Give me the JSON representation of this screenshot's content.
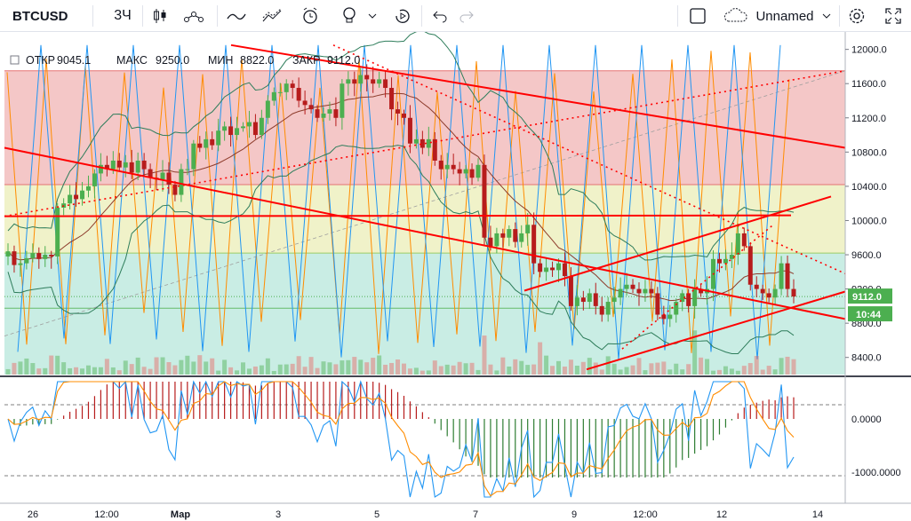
{
  "toolbar": {
    "symbol": "BTCUSD",
    "interval": "3Ч",
    "layout_name": "Unnamed",
    "icons": [
      "candles-icon",
      "indicators-icon",
      "line-tool-icon",
      "fib-tool-icon",
      "alert-icon",
      "idea-icon",
      "replay-icon",
      "undo-icon",
      "redo-icon",
      "square-icon",
      "cloud-icon",
      "settings-icon",
      "fullscreen-icon"
    ]
  },
  "legend": {
    "open_label": "ОТКР",
    "open": "9045.1",
    "high_label": "МАКС",
    "high": "9250.0",
    "low_label": "МИН",
    "low": "8822.0",
    "close_label": "ЗАКР",
    "close": "9112.0"
  },
  "chart_data": [
    {
      "type": "candlestick",
      "symbol": "BTCUSD",
      "ylim": [
        8200,
        12100
      ],
      "y_ticks": [
        "12000.0",
        "11600.0",
        "11200.0",
        "10800.0",
        "10400.0",
        "10000.0",
        "9600.0",
        "9200.0",
        "8800.0",
        "8400.0"
      ],
      "x_ticks": [
        "26",
        "12:00",
        "Мар",
        "3",
        "5",
        "7",
        "9",
        "12:00",
        "12",
        "14"
      ],
      "last_price_label": "9112.0",
      "countdown_label": "10:44",
      "closes": [
        9640,
        9480,
        9500,
        9560,
        9620,
        9550,
        9600,
        9580,
        10150,
        10200,
        10300,
        10250,
        10350,
        10400,
        10550,
        10650,
        10600,
        10700,
        10620,
        10680,
        10560,
        10700,
        10600,
        10500,
        10480,
        10560,
        10420,
        10300,
        10600,
        10600,
        10900,
        10850,
        10950,
        10880,
        11050,
        11100,
        11000,
        11080,
        11100,
        11150,
        11000,
        11200,
        11400,
        11500,
        11500,
        11600,
        11550,
        11400,
        11350,
        11300,
        11200,
        11250,
        11300,
        11200,
        11600,
        11650,
        11600,
        11700,
        11650,
        11600,
        11650,
        11550,
        11300,
        11250,
        11200,
        10900,
        10950,
        10850,
        10950,
        10700,
        10600,
        10650,
        10600,
        10550,
        10600,
        10500,
        10650,
        9800,
        9700,
        9850,
        9800,
        9900,
        9750,
        9850,
        9950,
        9500,
        9400,
        9450,
        9420,
        9500,
        9350,
        9000,
        9100,
        9050,
        9150,
        9000,
        8900,
        9050,
        9100,
        9200,
        9250,
        9200,
        9150,
        9200,
        9150,
        8900,
        8850,
        8900,
        9050,
        9150,
        9000,
        9200,
        9150,
        9200,
        9550,
        9500,
        9550,
        9600,
        9850,
        9700,
        9250,
        9200,
        9150,
        9100,
        9200,
        9500,
        9200,
        9112
      ],
      "oscillator_ticks": [
        "0.0000",
        "-1000.0000"
      ],
      "indicator_lines": [
        "bollinger-bands",
        "moving-average",
        "trend-lines",
        "horizontal-levels",
        "zigzag-orange",
        "zigzag-blue",
        "macd"
      ]
    }
  ],
  "colors": {
    "up": "#26a69a",
    "down": "#ef5350",
    "candle_up": "#4caf50",
    "candle_down": "#b71c1c",
    "trend": "#ff0000",
    "orange": "#ff8c00",
    "blue": "#2196f3",
    "price_label": "#4caf50"
  }
}
